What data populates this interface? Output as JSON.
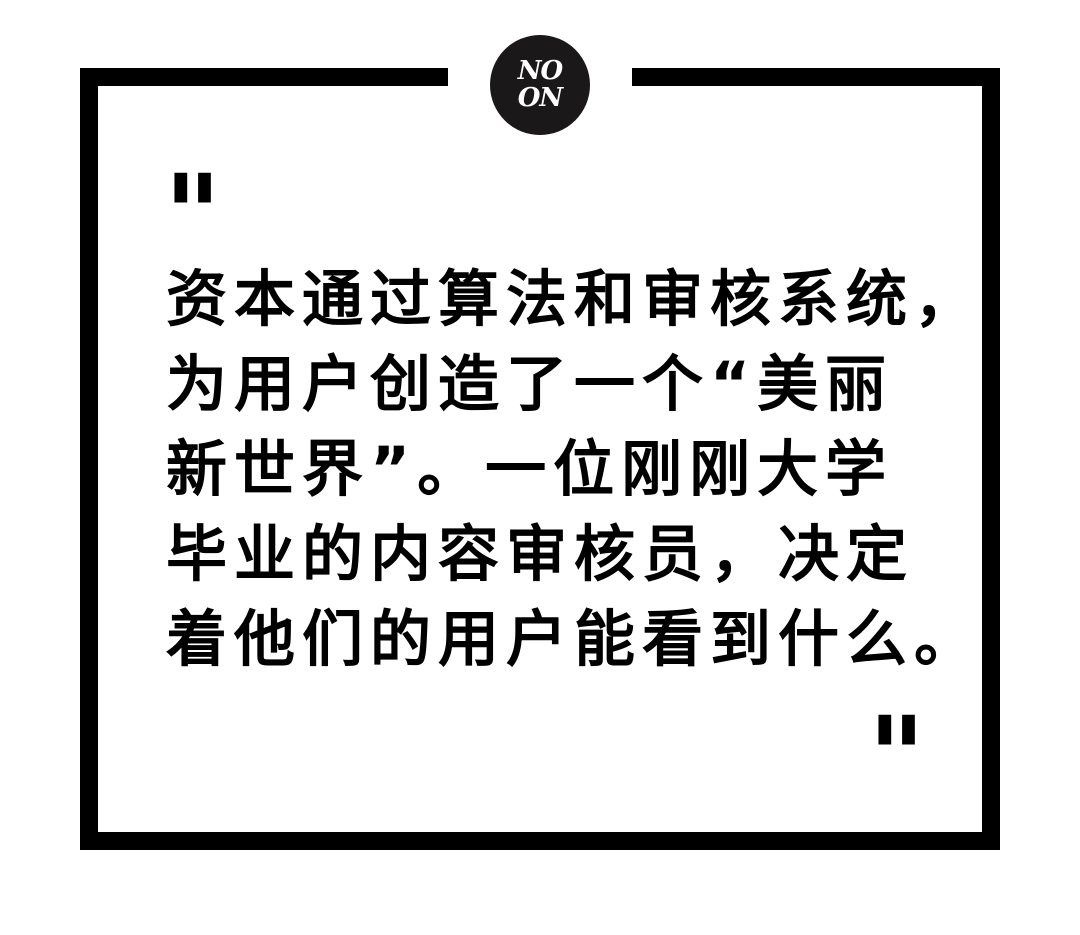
{
  "logo": {
    "line1": "NO",
    "line2": "ON"
  },
  "quote": {
    "open_mark": "\"",
    "close_mark": "\"",
    "lines": [
      "资本通过算法和审核系统，",
      "为用户创造了一个“美丽",
      "新世界”。一位刚刚大学",
      "毕业的内容审核员，决定",
      "着他们的用户能看到什么。"
    ]
  },
  "colors": {
    "frame": "#000000",
    "logo_bg": "#1a1818",
    "text": "#000000",
    "background": "#ffffff"
  }
}
